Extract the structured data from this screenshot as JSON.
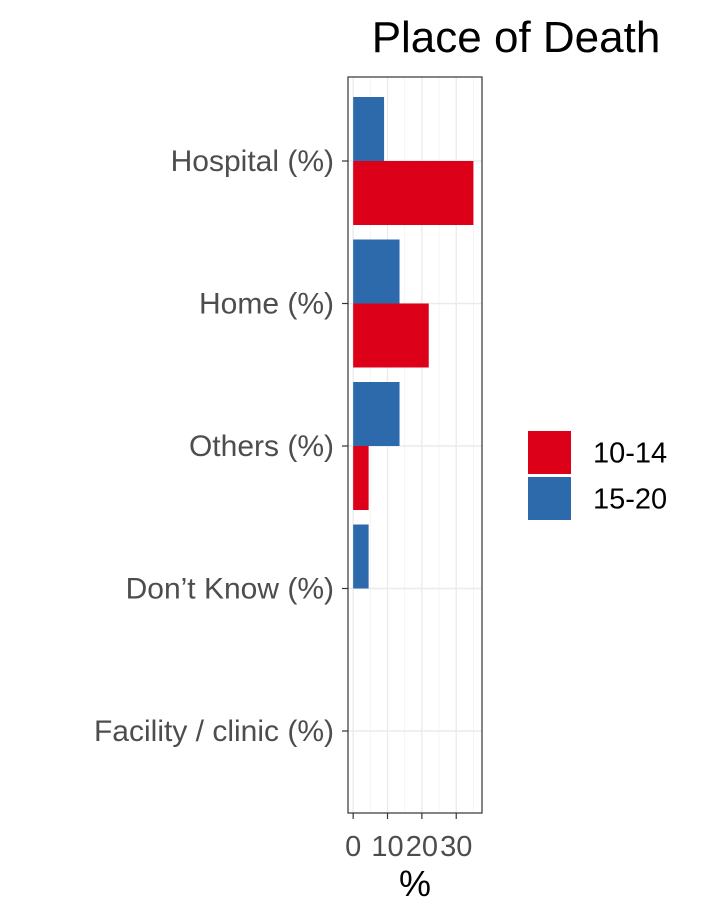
{
  "chart_data": {
    "type": "bar",
    "orientation": "horizontal",
    "title": "Place of Death",
    "xlabel": "%",
    "ylabel": "",
    "categories": [
      "Hospital (%)",
      "Home (%)",
      "Others (%)",
      "Don’t Know (%)",
      "Facility / clinic (%)"
    ],
    "series": [
      {
        "name": "10-14",
        "color": "#DC0019",
        "values": [
          35,
          22,
          4.5,
          0,
          0
        ]
      },
      {
        "name": "15-20",
        "color": "#2C6AAC",
        "values": [
          9,
          13.5,
          13.5,
          4.5,
          0
        ]
      }
    ],
    "xlim": [
      -1.5,
      37.5
    ],
    "xticks": [
      0,
      10,
      20,
      30
    ],
    "xtick_labels": [
      "0",
      "10",
      "20",
      "30"
    ],
    "grid": true,
    "legend_position": "right"
  }
}
